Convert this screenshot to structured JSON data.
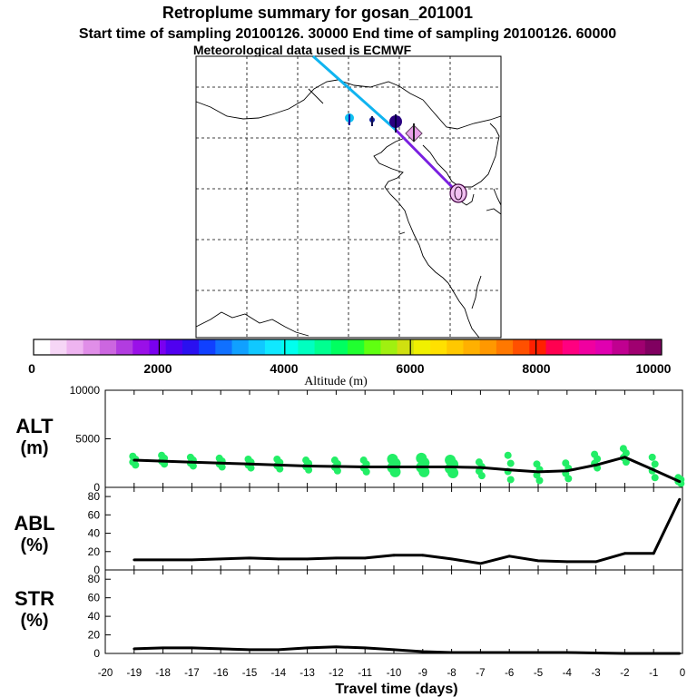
{
  "title": {
    "line1": "Retroplume summary for gosan_201001",
    "line2": "Start time of sampling 20100126. 30000     End time of sampling 20100126. 60000",
    "line3": "Meteorological data used is ECMWF"
  },
  "colorbar": {
    "label": "Altitude (m)",
    "ticks": [
      "0",
      "2000",
      "4000",
      "6000",
      "8000",
      "10000"
    ],
    "colors": [
      "#ffffff",
      "#f6d6f6",
      "#eeb4f0",
      "#e08ee8",
      "#cc66e0",
      "#b23ce0",
      "#9a10e8",
      "#7a00f0",
      "#5000f0",
      "#2a10f0",
      "#1040ff",
      "#1070ff",
      "#10a0ff",
      "#10c8ff",
      "#10e8ff",
      "#00ffee",
      "#00ffc0",
      "#00ff90",
      "#00ff60",
      "#20ff30",
      "#60ff10",
      "#a0f010",
      "#d0e010",
      "#f0f000",
      "#ffe000",
      "#ffc800",
      "#ffb000",
      "#ff9800",
      "#ff7800",
      "#ff5000",
      "#ff2000",
      "#ff0050",
      "#ff0080",
      "#f000a0",
      "#e000b0",
      "#c00090",
      "#a00070",
      "#800060"
    ]
  },
  "panels": {
    "alt": {
      "label": "ALT",
      "unit": "(m)"
    },
    "abl": {
      "label": "ABL",
      "unit": "(%)"
    },
    "str": {
      "label": "STR",
      "unit": "(%)"
    }
  },
  "xaxis_title": "Travel time (days)",
  "chart_data": [
    {
      "type": "line",
      "name": "ALT",
      "title": "ALT (m)",
      "xlabel": "Travel time (days)",
      "ylabel": "Altitude (m)",
      "xlim": [
        -20,
        0
      ],
      "ylim": [
        0,
        10000
      ],
      "yticks": [
        "10000",
        "5000",
        "0"
      ],
      "x": [
        -19,
        -18,
        -17,
        -16,
        -15,
        -14,
        -13,
        -12,
        -11,
        -10,
        -9,
        -8,
        -7,
        -6,
        -5,
        -4,
        -3,
        -2,
        -1,
        -0.1
      ],
      "values": [
        2800,
        2700,
        2600,
        2500,
        2400,
        2300,
        2200,
        2150,
        2100,
        2100,
        2100,
        2100,
        2050,
        1800,
        1600,
        1700,
        2300,
        3100,
        1800,
        600
      ]
    },
    {
      "type": "line",
      "name": "ABL",
      "title": "ABL (%)",
      "xlabel": "Travel time (days)",
      "ylabel": "ABL (%)",
      "xlim": [
        -20,
        0
      ],
      "ylim": [
        0,
        90
      ],
      "yticks": [
        "80",
        "60",
        "40",
        "20",
        "0"
      ],
      "x": [
        -19,
        -18,
        -17,
        -16,
        -15,
        -14,
        -13,
        -12,
        -11,
        -10,
        -9,
        -8,
        -7,
        -6,
        -5,
        -4,
        -3,
        -2,
        -1,
        -0.1
      ],
      "values": [
        11,
        11,
        11,
        12,
        13,
        12,
        12,
        13,
        13,
        16,
        16,
        12,
        7,
        15,
        10,
        9,
        9,
        18,
        18,
        77
      ]
    },
    {
      "type": "line",
      "name": "STR",
      "title": "STR (%)",
      "xlabel": "Travel time (days)",
      "ylabel": "STR (%)",
      "xlim": [
        -20,
        0
      ],
      "ylim": [
        0,
        90
      ],
      "yticks": [
        "80",
        "60",
        "40",
        "20",
        "0"
      ],
      "x": [
        -19,
        -18,
        -17,
        -16,
        -15,
        -14,
        -13,
        -12,
        -11,
        -10,
        -9,
        -8,
        -7,
        -6,
        -5,
        -4,
        -3,
        -2,
        -1,
        -0.1
      ],
      "values": [
        5,
        6,
        6,
        5,
        4,
        4,
        6,
        7,
        6,
        4,
        2,
        1,
        1,
        1,
        1,
        1,
        0.5,
        0,
        0,
        0
      ]
    }
  ],
  "xticks": [
    "-20",
    "-19",
    "-18",
    "-17",
    "-16",
    "-15",
    "-14",
    "-13",
    "-12",
    "-11",
    "-10",
    "-9",
    "-8",
    "-7",
    "-6",
    "-5",
    "-4",
    "-3",
    "-2",
    "-1",
    "0"
  ],
  "alt_plume_spread": [
    [
      3200,
      2300
    ],
    [
      3300,
      2400
    ],
    [
      3100,
      2200
    ],
    [
      3000,
      2100
    ],
    [
      2900,
      2000
    ],
    [
      2900,
      1900
    ],
    [
      2800,
      1800
    ],
    [
      2800,
      1700
    ],
    [
      2800,
      1600
    ],
    [
      2900,
      1600
    ],
    [
      3000,
      1600
    ],
    [
      2800,
      1500
    ],
    [
      2600,
      1200
    ],
    [
      3300,
      800
    ],
    [
      2400,
      700
    ],
    [
      2500,
      900
    ],
    [
      3400,
      2000
    ],
    [
      4000,
      2600
    ],
    [
      3100,
      1000
    ],
    [
      1000,
      400
    ]
  ]
}
